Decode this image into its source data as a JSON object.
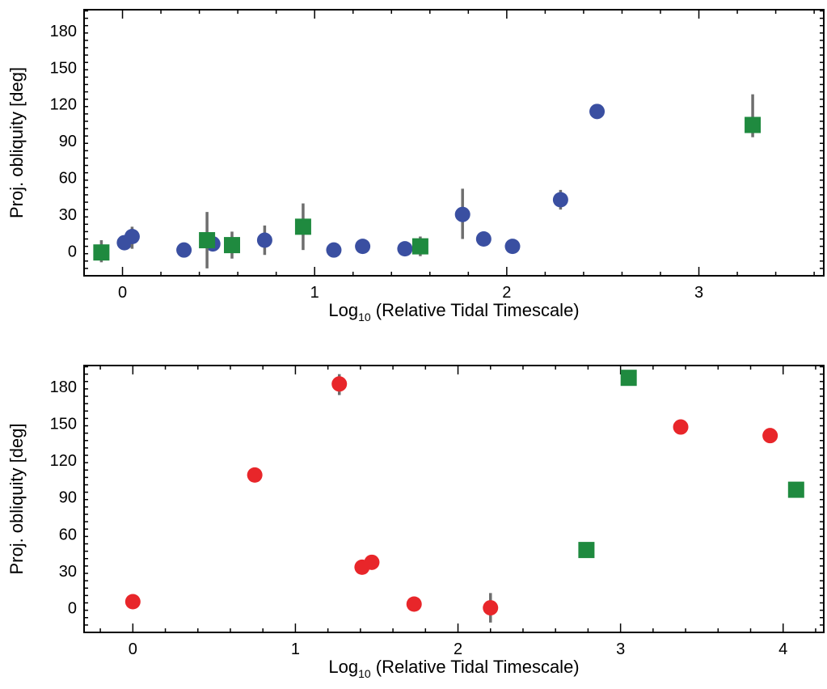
{
  "chart_data": [
    {
      "type": "scatter",
      "title": "",
      "xlabel": "Log",
      "xlabel_sub": "10",
      "xlabel_rest": " (Relative Tidal Timescale)",
      "ylabel": "Proj. obliquity [deg]",
      "xlim": [
        -0.2,
        3.65
      ],
      "ylim": [
        -20,
        197
      ],
      "xticks": [
        0,
        1,
        2,
        3
      ],
      "yticks": [
        0,
        30,
        60,
        90,
        120,
        150,
        180
      ],
      "grid": false,
      "series": [
        {
          "marker": "circle",
          "color": "#3a4fa1",
          "points": [
            {
              "x": 0.01,
              "y": 7,
              "yerr": [
                5,
                5
              ]
            },
            {
              "x": 0.05,
              "y": 12,
              "yerr": [
                10,
                8
              ]
            },
            {
              "x": 0.32,
              "y": 1,
              "yerr": [
                6,
                6
              ]
            },
            {
              "x": 0.47,
              "y": 6,
              "yerr": [
                4,
                4
              ]
            },
            {
              "x": 0.74,
              "y": 9,
              "yerr": [
                12,
                12
              ]
            },
            {
              "x": 1.1,
              "y": 1,
              "yerr": [
                2,
                2
              ]
            },
            {
              "x": 1.25,
              "y": 4,
              "yerr": [
                2,
                2
              ]
            },
            {
              "x": 1.47,
              "y": 2,
              "yerr": [
                2,
                2
              ]
            },
            {
              "x": 1.77,
              "y": 30,
              "yerr": [
                20,
                21
              ]
            },
            {
              "x": 1.88,
              "y": 10,
              "yerr": [
                3,
                3
              ]
            },
            {
              "x": 2.03,
              "y": 4,
              "yerr": [
                2,
                2
              ]
            },
            {
              "x": 2.28,
              "y": 42,
              "yerr": [
                8,
                8
              ]
            },
            {
              "x": 2.47,
              "y": 114,
              "yerr": [
                3,
                3
              ]
            }
          ]
        },
        {
          "marker": "square",
          "color": "#1f8a3f",
          "points": [
            {
              "x": -0.11,
              "y": -1,
              "yerr": [
                8,
                10
              ]
            },
            {
              "x": 0.44,
              "y": 9,
              "yerr": [
                23,
                23
              ]
            },
            {
              "x": 0.57,
              "y": 5,
              "yerr": [
                11,
                11
              ]
            },
            {
              "x": 0.94,
              "y": 20,
              "yerr": [
                19,
                19
              ]
            },
            {
              "x": 1.55,
              "y": 4,
              "yerr": [
                8,
                8
              ]
            },
            {
              "x": 3.28,
              "y": 103,
              "yerr": [
                10,
                25
              ]
            }
          ]
        }
      ]
    },
    {
      "type": "scatter",
      "title": "",
      "xlabel": "Log",
      "xlabel_sub": "10",
      "xlabel_rest": " (Relative Tidal Timescale)",
      "ylabel": "Proj. obliquity [deg]",
      "xlim": [
        -0.3,
        4.25
      ],
      "ylim": [
        -20,
        197
      ],
      "xticks": [
        0,
        1,
        2,
        3,
        4
      ],
      "yticks": [
        0,
        30,
        60,
        90,
        120,
        150,
        180
      ],
      "grid": false,
      "series": [
        {
          "marker": "circle",
          "color": "#e8262a",
          "points": [
            {
              "x": 0.0,
              "y": 5,
              "yerr": [
                2,
                2
              ]
            },
            {
              "x": 0.75,
              "y": 108,
              "yerr": [
                2,
                2
              ]
            },
            {
              "x": 1.27,
              "y": 182,
              "yerr": [
                9,
                8
              ]
            },
            {
              "x": 1.41,
              "y": 33,
              "yerr": [
                3,
                3
              ]
            },
            {
              "x": 1.47,
              "y": 37,
              "yerr": [
                3,
                3
              ]
            },
            {
              "x": 1.73,
              "y": 3,
              "yerr": [
                2,
                2
              ]
            },
            {
              "x": 2.2,
              "y": 0,
              "yerr": [
                12,
                12
              ]
            },
            {
              "x": 3.37,
              "y": 147,
              "yerr": [
                2,
                2
              ]
            },
            {
              "x": 3.92,
              "y": 140,
              "yerr": [
                2,
                2
              ]
            }
          ]
        },
        {
          "marker": "square",
          "color": "#1f8a3f",
          "points": [
            {
              "x": 2.79,
              "y": 47,
              "yerr": [
                3,
                5
              ]
            },
            {
              "x": 3.05,
              "y": 187,
              "yerr": [
                2,
                2
              ]
            },
            {
              "x": 4.08,
              "y": 96,
              "yerr": [
                2,
                2
              ]
            }
          ]
        }
      ]
    }
  ]
}
